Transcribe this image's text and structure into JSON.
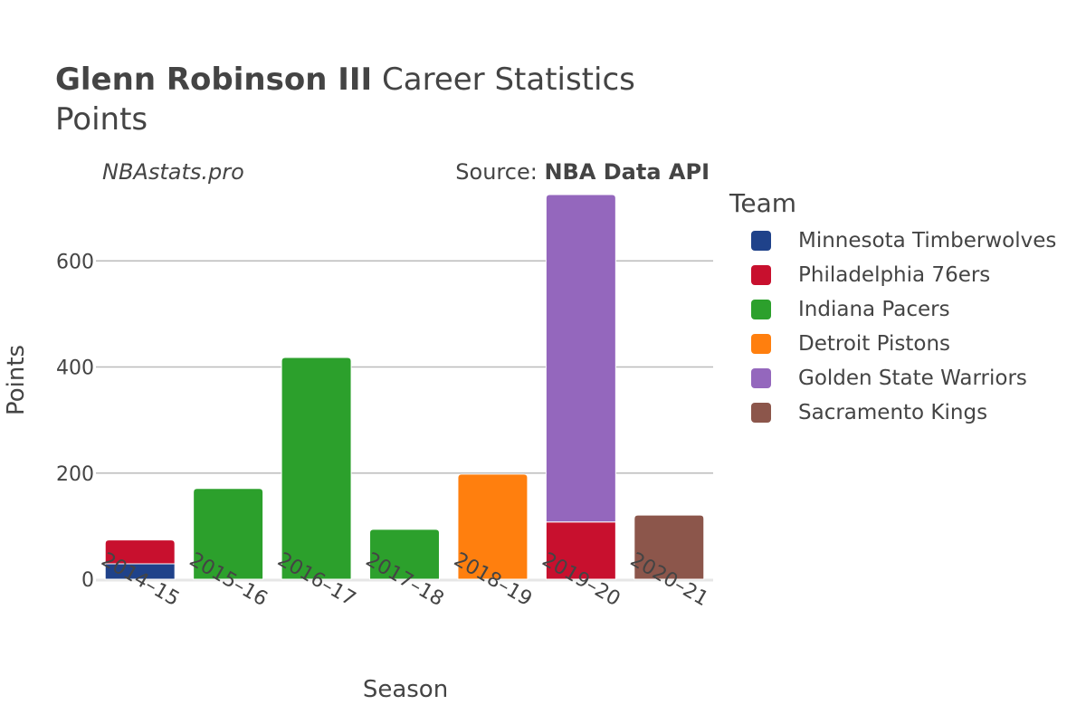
{
  "header": {
    "player_name": "Glenn Robinson III",
    "title_rest": "Career Statistics",
    "subtitle": "Points"
  },
  "watermark": "NBAstats.pro",
  "source": {
    "prefix": "Source:",
    "name": "NBA Data API"
  },
  "legend": {
    "title": "Team",
    "items": [
      {
        "label": "Minnesota Timberwolves",
        "color": "#1f428a"
      },
      {
        "label": "Philadelphia 76ers",
        "color": "#c8102e"
      },
      {
        "label": "Indiana Pacers",
        "color": "#2ca02c"
      },
      {
        "label": "Detroit Pistons",
        "color": "#ff7f0e"
      },
      {
        "label": "Golden State Warriors",
        "color": "#9467bd"
      },
      {
        "label": "Sacramento Kings",
        "color": "#8c564b"
      }
    ]
  },
  "chart_data": {
    "type": "bar",
    "stacked": true,
    "xlabel": "Season",
    "ylabel": "Points",
    "ylim": [
      0,
      725
    ],
    "yticks": [
      0,
      200,
      400,
      600
    ],
    "grid": true,
    "legend_position": "right",
    "categories": [
      "2014–15",
      "2015–16",
      "2016–17",
      "2017–18",
      "2018–19",
      "2019–20",
      "2020–21"
    ],
    "series": [
      {
        "name": "Minnesota Timberwolves",
        "color": "#1f428a",
        "values": [
          29,
          0,
          0,
          0,
          0,
          0,
          0
        ]
      },
      {
        "name": "Philadelphia 76ers",
        "color": "#c8102e",
        "values": [
          45,
          0,
          0,
          0,
          0,
          108,
          0
        ]
      },
      {
        "name": "Indiana Pacers",
        "color": "#2ca02c",
        "values": [
          0,
          171,
          418,
          94,
          0,
          0,
          0
        ]
      },
      {
        "name": "Detroit Pistons",
        "color": "#ff7f0e",
        "values": [
          0,
          0,
          0,
          0,
          198,
          0,
          0
        ]
      },
      {
        "name": "Golden State Warriors",
        "color": "#9467bd",
        "values": [
          0,
          0,
          0,
          0,
          0,
          617,
          0
        ]
      },
      {
        "name": "Sacramento Kings",
        "color": "#8c564b",
        "values": [
          0,
          0,
          0,
          0,
          0,
          0,
          121
        ]
      }
    ]
  }
}
